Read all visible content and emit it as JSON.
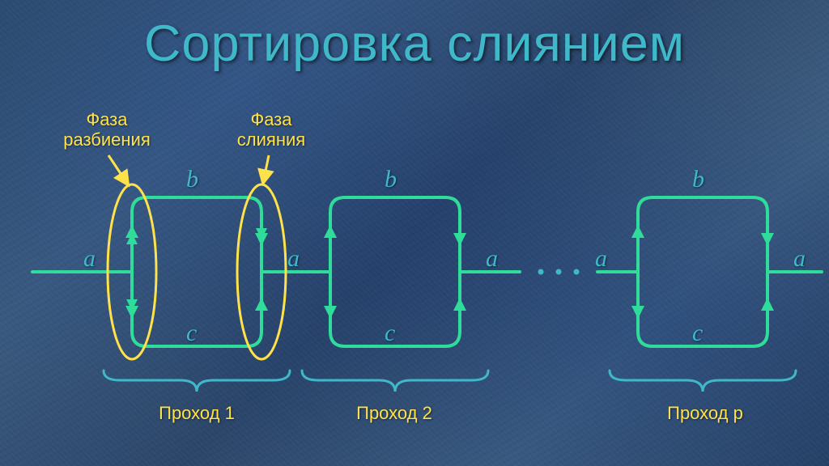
{
  "title": "Сортировка слиянием",
  "colors": {
    "title": "#3fb8c9",
    "phase_label": "#ffe24a",
    "pass_label": "#ffe24a",
    "var_label": "#3fb8c9",
    "flow_stroke": "#2fdc9a",
    "flow_fill": "#2fdc9a",
    "ellipse": "#ffe24a",
    "arrow_leader": "#ffe24a",
    "brace": "#3fb8c9",
    "ellipsis": "#3fb8c9"
  },
  "phases": {
    "split": "Фаза\nразбиения",
    "merge": "Фаза\nслияния"
  },
  "vars": {
    "a": "a",
    "b": "b",
    "c": "c"
  },
  "passes": {
    "p1": "Проход 1",
    "p2": "Проход 2",
    "pp": "Проход p"
  }
}
